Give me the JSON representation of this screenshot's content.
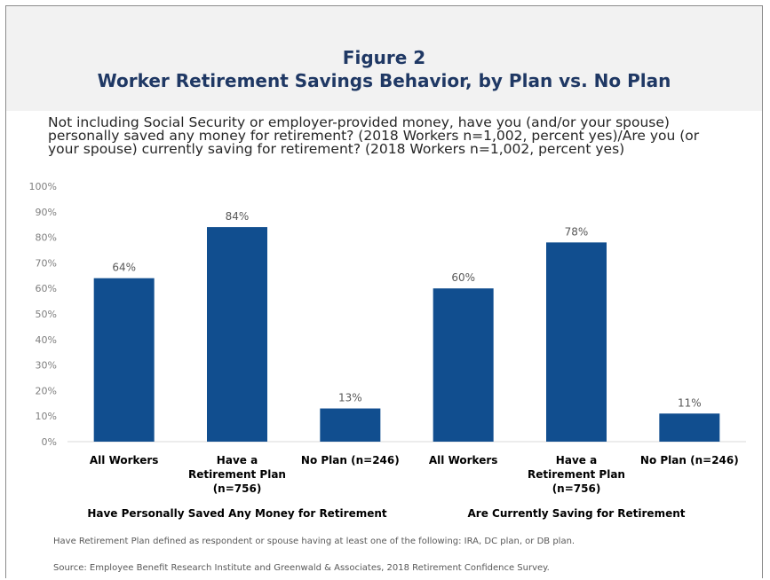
{
  "header": {
    "figure_label": "Figure 2",
    "title": "Worker Retirement Savings Behavior, by Plan vs. No Plan"
  },
  "question_lines": [
    "Not including Social Security or employer-provided money, have you (and/or your spouse)",
    "personally saved any money for retirement? (2018 Workers n=1,002, percent yes)/Are you (or",
    "your spouse) currently saving for retirement? (2018 Workers n=1,002, percent yes)"
  ],
  "chart_data": {
    "type": "bar",
    "title": "Worker Retirement Savings Behavior, by Plan vs. No Plan",
    "ylim": [
      0,
      100
    ],
    "y_ticks": [
      "0%",
      "10%",
      "20%",
      "30%",
      "40%",
      "50%",
      "60%",
      "70%",
      "80%",
      "90%",
      "100%"
    ],
    "grid": false,
    "bar_color": "#114e8f",
    "categories": [
      [
        "All Workers"
      ],
      [
        "Have a",
        "Retirement Plan",
        "(n=756)"
      ],
      [
        "No Plan (n=246)"
      ],
      [
        "All Workers"
      ],
      [
        "Have a",
        "Retirement Plan",
        "(n=756)"
      ],
      [
        "No Plan (n=246)"
      ]
    ],
    "values": [
      64,
      84,
      13,
      60,
      78,
      11
    ],
    "value_labels": [
      "64%",
      "84%",
      "13%",
      "60%",
      "78%",
      "11%"
    ],
    "groups": [
      {
        "label": "Have Personally Saved Any Money for Retirement",
        "members": [
          0,
          1,
          2
        ]
      },
      {
        "label": "Are Currently Saving for Retirement",
        "members": [
          3,
          4,
          5
        ]
      }
    ]
  },
  "footnote": "Have Retirement Plan defined as respondent or spouse having at least one of the following: IRA, DC plan, or DB plan.",
  "source": "Source:  Employee Benefit Research Institute and Greenwald & Associates, 2018 Retirement Confidence Survey."
}
